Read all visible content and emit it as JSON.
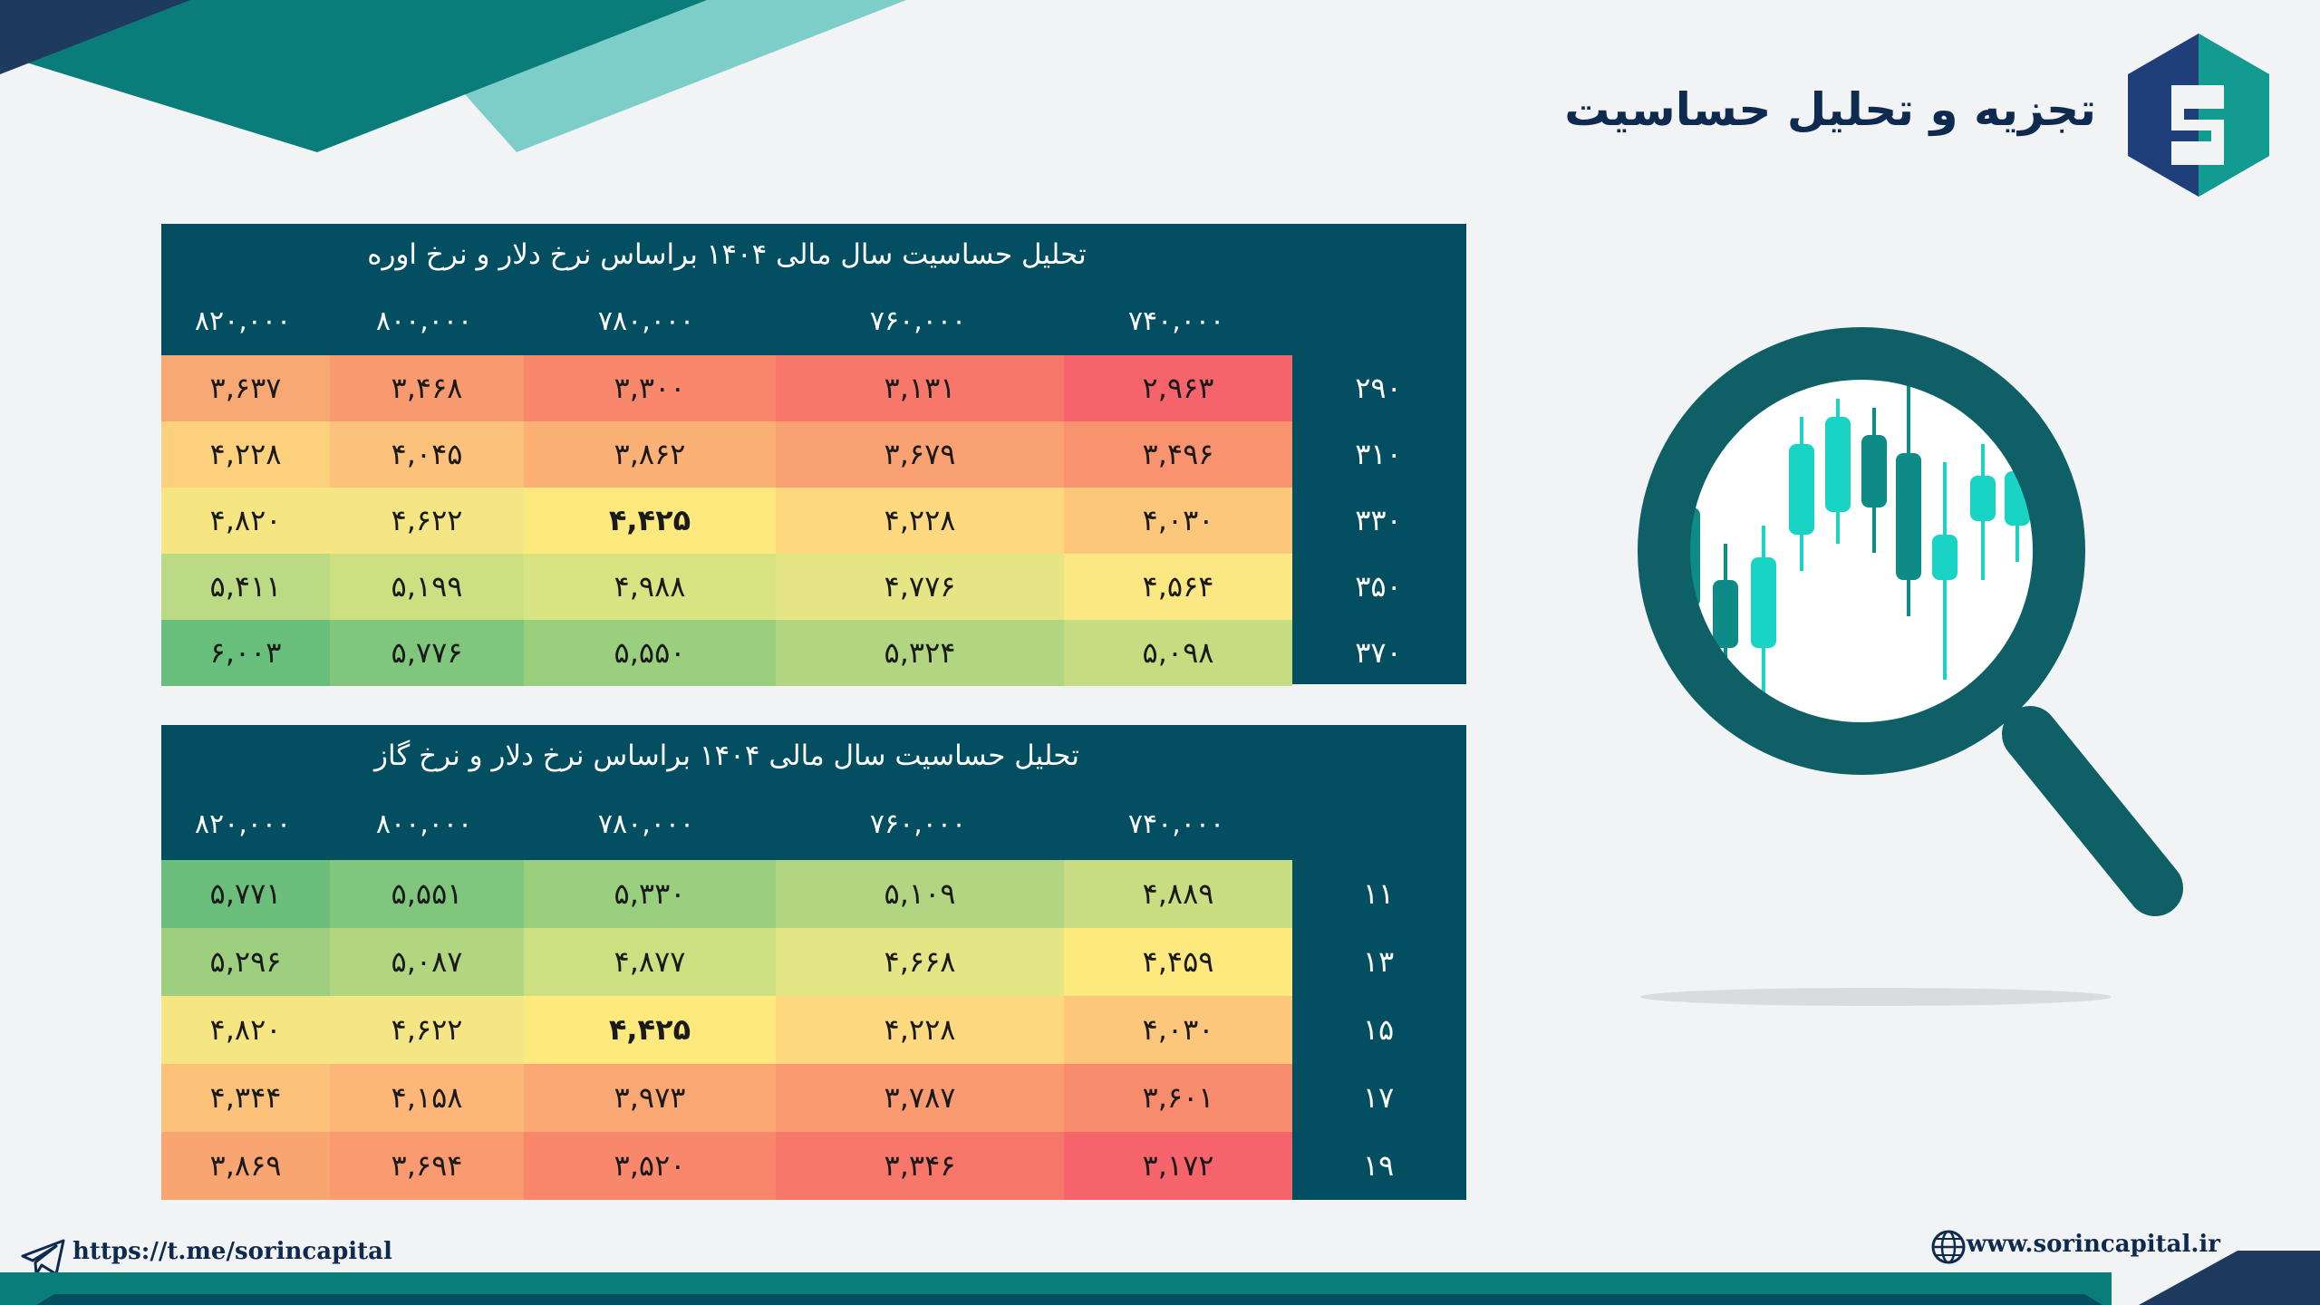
{
  "page": {
    "title": "تجزیه و تحلیل حساسیت",
    "telegram_link": "https://t.me/sorincapital",
    "website_link": "www.sorincapital.ir",
    "brand_colors": {
      "teal_dark": "#034e61",
      "teal": "#0a7d7a",
      "teal_light": "#7dcdc9",
      "navy": "#1e3f7a"
    }
  },
  "tables": [
    {
      "title": "تحلیل حساسیت سال مالی ۱۴۰۴ براساس نرخ دلار و نرخ اوره",
      "col_headers": [
        "۸۲۰,۰۰۰",
        "۸۰۰,۰۰۰",
        "۷۸۰,۰۰۰",
        "۷۶۰,۰۰۰",
        "۷۴۰,۰۰۰"
      ],
      "row_labels": [
        "۲۹۰",
        "۳۱۰",
        "۳۳۰",
        "۳۵۰",
        "۳۷۰"
      ],
      "rows": [
        [
          "۳,۶۳۷",
          "۳,۴۶۸",
          "۳,۳۰۰",
          "۳,۱۳۱",
          "۲,۹۶۳"
        ],
        [
          "۴,۲۲۸",
          "۴,۰۴۵",
          "۳,۸۶۲",
          "۳,۶۷۹",
          "۳,۴۹۶"
        ],
        [
          "۴,۸۲۰",
          "۴,۶۲۲",
          "۴,۴۲۵",
          "۴,۲۲۸",
          "۴,۰۳۰"
        ],
        [
          "۵,۴۱۱",
          "۵,۱۹۹",
          "۴,۹۸۸",
          "۴,۷۷۶",
          "۴,۵۶۴"
        ],
        [
          "۶,۰۰۳",
          "۵,۷۷۶",
          "۵,۵۵۰",
          "۵,۳۲۴",
          "۵,۰۹۸"
        ]
      ],
      "colors": [
        [
          "#f7a873",
          "#f89a70",
          "#f8886b",
          "#f7786b",
          "#f5646b"
        ],
        [
          "#fdd07e",
          "#fcc17a",
          "#fbb075",
          "#f9a172",
          "#f9936f"
        ],
        [
          "#f6e683",
          "#f4e585",
          "#fde97d",
          "#fed980",
          "#fcc67b"
        ],
        [
          "#bcd983",
          "#cde081",
          "#d8e382",
          "#e5e585",
          "#fbe882"
        ],
        [
          "#67bf7b",
          "#80c67d",
          "#9acf7e",
          "#b1d580",
          "#c6dc81"
        ]
      ],
      "bold": [
        [
          false,
          false,
          false,
          false,
          false
        ],
        [
          false,
          false,
          false,
          false,
          false
        ],
        [
          false,
          false,
          true,
          false,
          false
        ],
        [
          false,
          false,
          false,
          false,
          false
        ],
        [
          false,
          false,
          false,
          false,
          false
        ]
      ]
    },
    {
      "title": "تحلیل حساسیت سال مالی ۱۴۰۴ براساس نرخ دلار و نرخ گاز",
      "col_headers": [
        "۸۲۰,۰۰۰",
        "۸۰۰,۰۰۰",
        "۷۸۰,۰۰۰",
        "۷۶۰,۰۰۰",
        "۷۴۰,۰۰۰"
      ],
      "row_labels": [
        "۱۱",
        "۱۳",
        "۱۵",
        "۱۷",
        "۱۹"
      ],
      "rows": [
        [
          "۵,۷۷۱",
          "۵,۵۵۱",
          "۵,۳۳۰",
          "۵,۱۰۹",
          "۴,۸۸۹"
        ],
        [
          "۵,۲۹۶",
          "۵,۰۸۷",
          "۴,۸۷۷",
          "۴,۶۶۸",
          "۴,۴۵۹"
        ],
        [
          "۴,۸۲۰",
          "۴,۶۲۲",
          "۴,۴۲۵",
          "۴,۲۲۸",
          "۴,۰۳۰"
        ],
        [
          "۴,۳۴۴",
          "۴,۱۵۸",
          "۳,۹۷۳",
          "۳,۷۸۷",
          "۳,۶۰۱"
        ],
        [
          "۳,۸۶۹",
          "۳,۶۹۴",
          "۳,۵۲۰",
          "۳,۳۴۶",
          "۳,۱۷۲"
        ]
      ],
      "colors": [
        [
          "#6bbf7b",
          "#80c67d",
          "#9acf7e",
          "#b1d580",
          "#c9dd82"
        ],
        [
          "#9dcf7e",
          "#b2d580",
          "#cce081",
          "#e4e584",
          "#fde97d"
        ],
        [
          "#f6e683",
          "#f4e585",
          "#fde97d",
          "#fed980",
          "#fcc67b"
        ],
        [
          "#fcc27a",
          "#fcb677",
          "#faa873",
          "#f99a70",
          "#f78c6d"
        ],
        [
          "#f9a572",
          "#f99a70",
          "#f8876c",
          "#f7786b",
          "#f5646b"
        ]
      ],
      "bold": [
        [
          false,
          false,
          false,
          false,
          false
        ],
        [
          false,
          false,
          false,
          false,
          false
        ],
        [
          false,
          false,
          true,
          false,
          false
        ],
        [
          false,
          false,
          false,
          false,
          false
        ],
        [
          false,
          false,
          false,
          false,
          false
        ]
      ]
    }
  ]
}
